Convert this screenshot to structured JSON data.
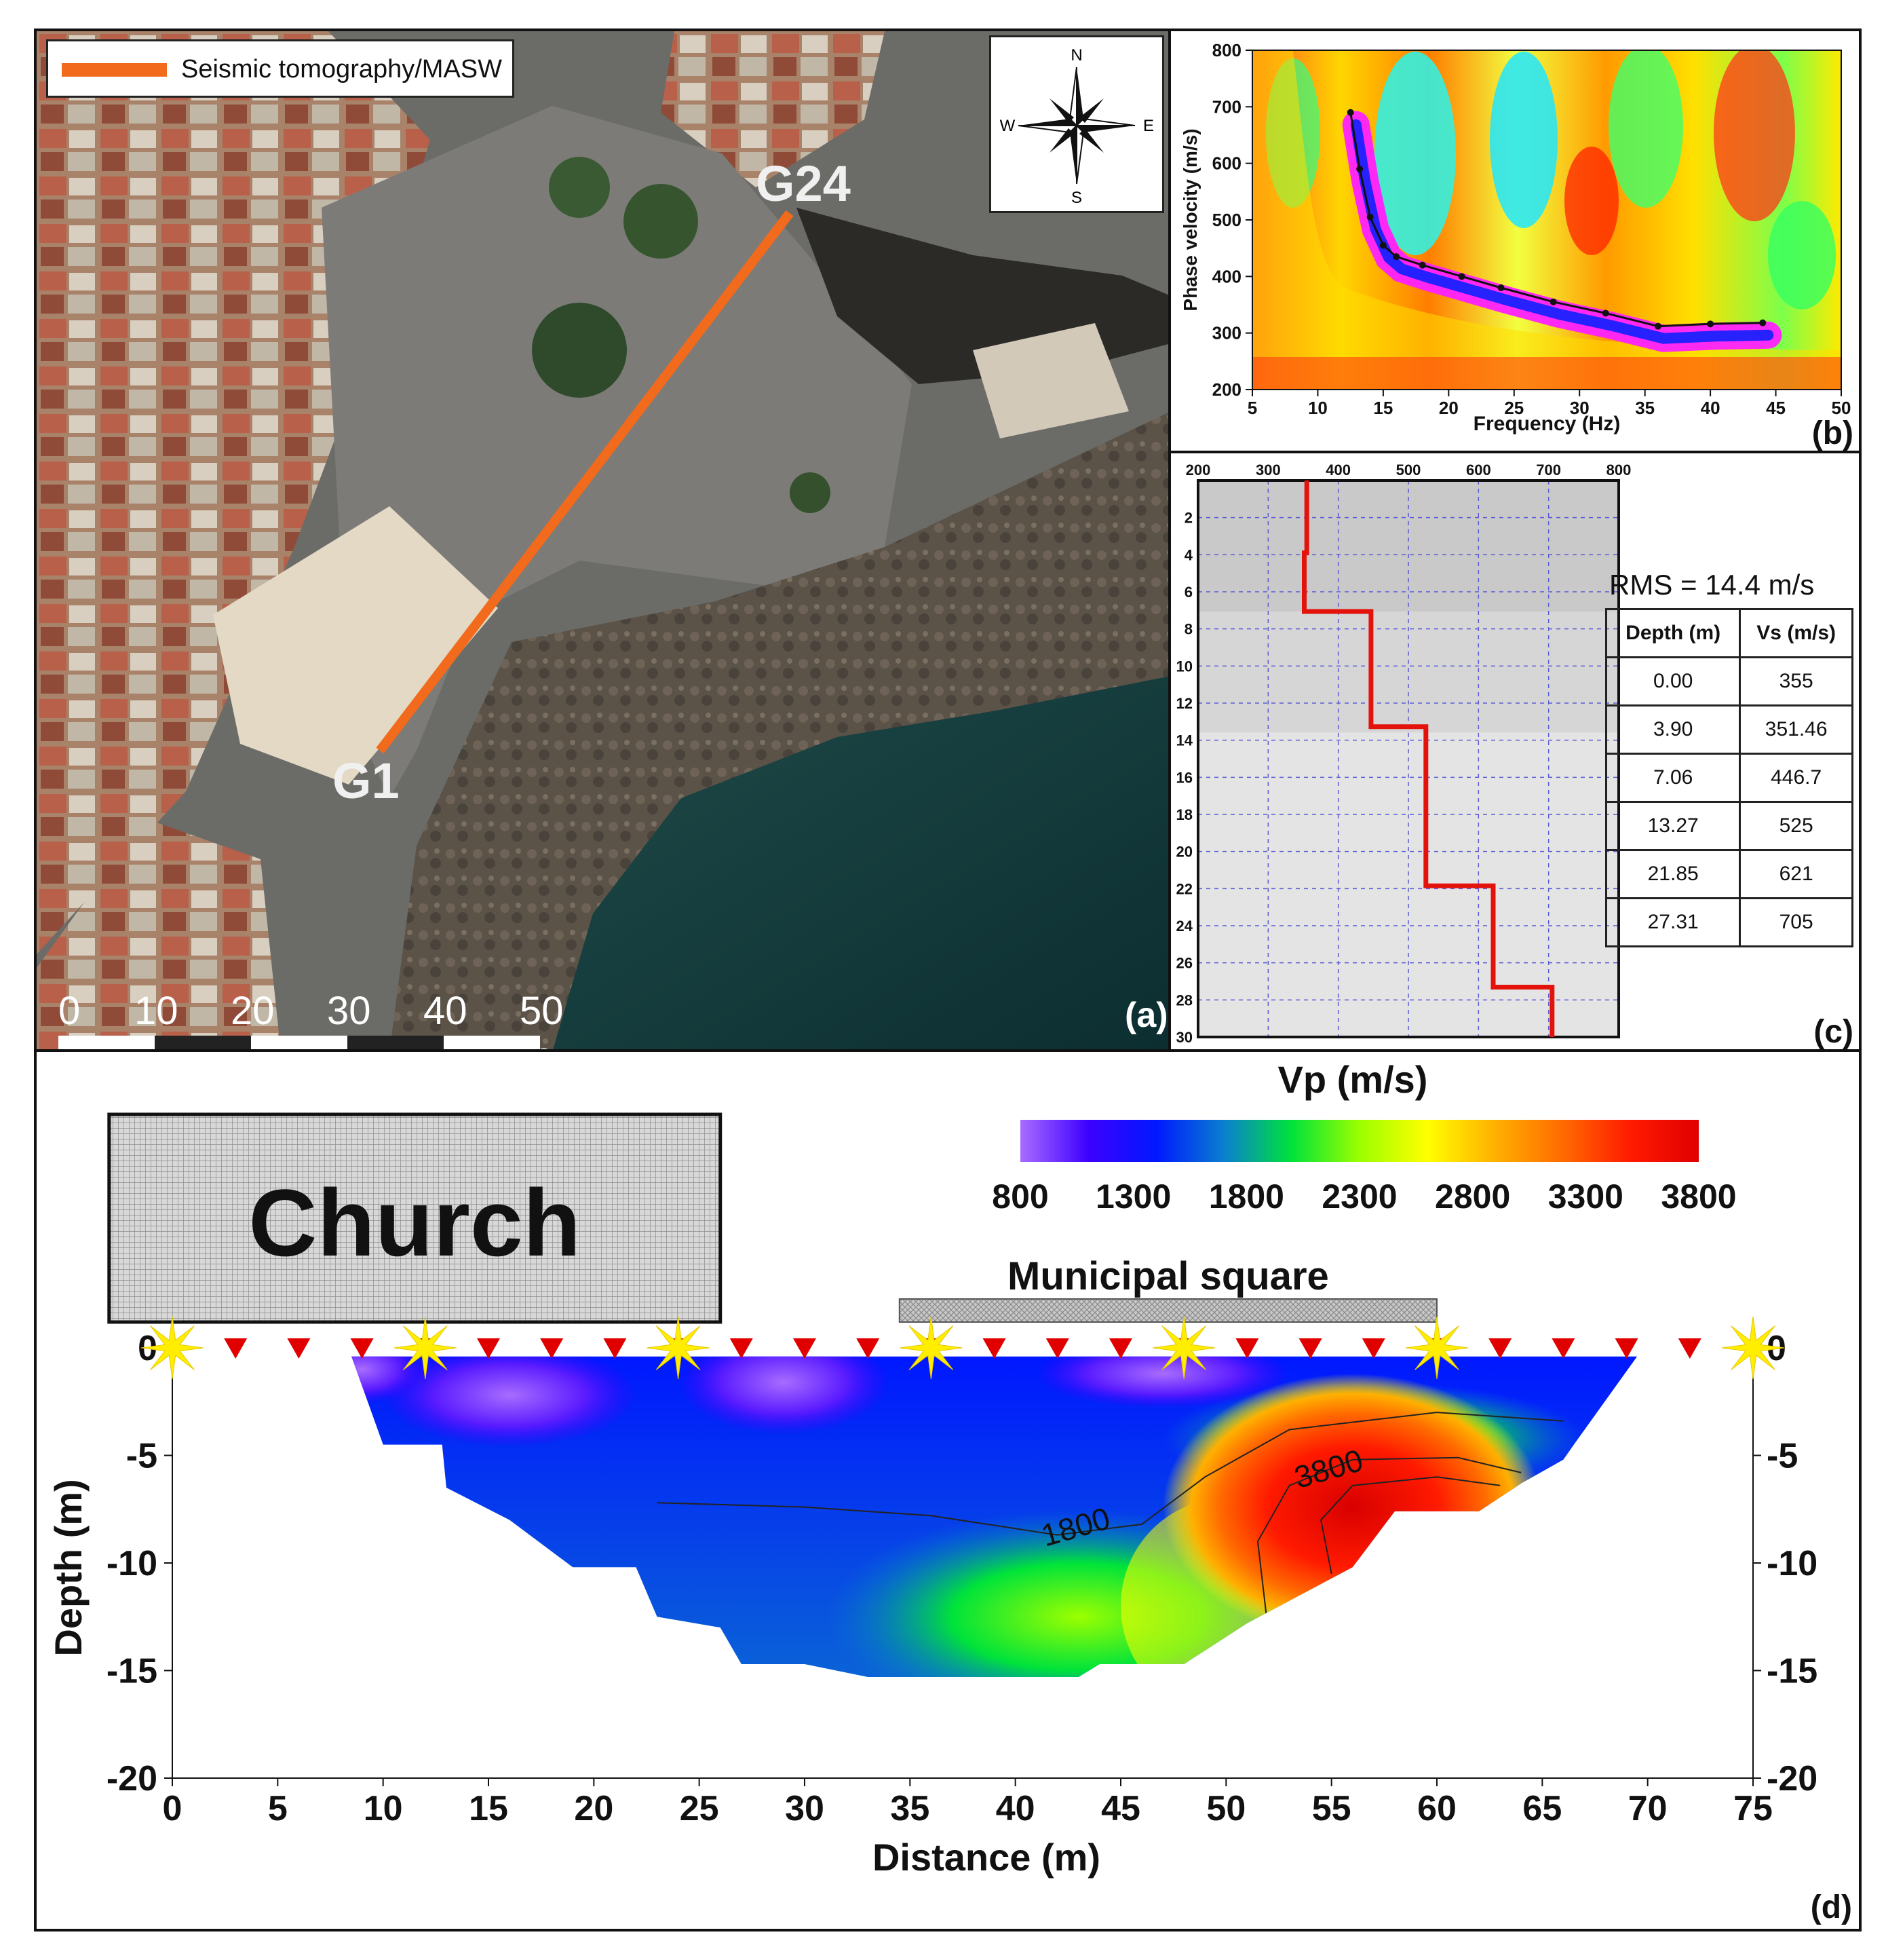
{
  "panel_labels": {
    "a": "(a)",
    "b": "(b)",
    "c": "(c)",
    "d": "(d)"
  },
  "map": {
    "legend_label": "Seismic tomography/MASW",
    "line_color": "#f26a1b",
    "endpoint_start": "G1",
    "endpoint_end": "G24",
    "compass": {
      "n": "N",
      "s": "S",
      "e": "E",
      "w": "W"
    },
    "scale_labels": [
      "0",
      "10",
      "20",
      "30",
      "40",
      "50 m"
    ]
  },
  "chart_data": [
    {
      "type": "heatmap",
      "panel": "b",
      "xlabel": "Frequency (Hz)",
      "ylabel": "Phase velocity (m/s)",
      "xlim": [
        5,
        50
      ],
      "ylim": [
        200,
        800
      ],
      "xticks": [
        5,
        10,
        15,
        20,
        25,
        30,
        35,
        40,
        45,
        50
      ],
      "yticks": [
        200,
        300,
        400,
        500,
        600,
        700,
        800
      ],
      "dispersion_curve": {
        "x": [
          12.5,
          13.2,
          14,
          15,
          16,
          18,
          21,
          24,
          28,
          32,
          36,
          40,
          44
        ],
        "y": [
          690,
          590,
          505,
          455,
          435,
          420,
          400,
          380,
          355,
          335,
          312,
          316,
          318
        ]
      }
    },
    {
      "type": "line",
      "panel": "c",
      "xlim": [
        200,
        800
      ],
      "ylim": [
        0,
        30
      ],
      "xticks": [
        200,
        300,
        400,
        500,
        600,
        700,
        800
      ],
      "yticks": [
        2,
        4,
        6,
        8,
        10,
        12,
        14,
        16,
        18,
        20,
        22,
        24,
        26,
        28,
        30
      ],
      "rms_text": "RMS = 14.4 m/s",
      "table": {
        "headers": [
          "Depth (m)",
          "Vs (m/s)"
        ],
        "rows": [
          [
            "0.00",
            "355"
          ],
          [
            "3.90",
            "351.46"
          ],
          [
            "7.06",
            "446.7"
          ],
          [
            "13.27",
            "525"
          ],
          [
            "21.85",
            "621"
          ],
          [
            "27.31",
            "705"
          ]
        ]
      },
      "vs_profile": {
        "depth_top": [
          0,
          3.9,
          7.06,
          13.27,
          21.85,
          27.31
        ],
        "vs": [
          355,
          351.46,
          446.7,
          525,
          621,
          705
        ]
      },
      "shaded_layers": [
        {
          "depth_top": 0,
          "depth_bottom": 7.06,
          "color": "#c9c9c9"
        },
        {
          "depth_top": 7.06,
          "depth_bottom": 13.6,
          "color": "#d6d6d6"
        },
        {
          "depth_top": 13.6,
          "depth_bottom": 30,
          "color": "#e4e4e4"
        }
      ]
    },
    {
      "type": "heatmap",
      "panel": "d",
      "xlabel": "Distance (m)",
      "ylabel": "Depth (m)",
      "xlim": [
        0,
        75
      ],
      "ylim": [
        -20,
        0
      ],
      "xticks": [
        0,
        5,
        10,
        15,
        20,
        25,
        30,
        35,
        40,
        45,
        50,
        55,
        60,
        65,
        70,
        75
      ],
      "yticks": [
        0,
        -5,
        -10,
        -15,
        -20
      ],
      "colorbar": {
        "title": "Vp (m/s)",
        "ticks": [
          800,
          1300,
          1800,
          2300,
          2800,
          3300,
          3800
        ],
        "colors": [
          "#a86cff",
          "#3d00ff",
          "#0018ff",
          "#0a7fd0",
          "#00e33a",
          "#9cff00",
          "#ffff00",
          "#ffb000",
          "#ff6a00",
          "#ff1a00",
          "#e00000"
        ]
      },
      "contour_labels": [
        {
          "x": 43,
          "y": -8.8,
          "text": "1800"
        },
        {
          "x": 55,
          "y": -6.1,
          "text": "3800"
        }
      ],
      "geophones_x": [
        3,
        6,
        9,
        12,
        15,
        18,
        21,
        24,
        27,
        30,
        33,
        36,
        39,
        42,
        45,
        48,
        51,
        54,
        57,
        60,
        63,
        66,
        69,
        72
      ],
      "shots_x": [
        0,
        12,
        24,
        36,
        48,
        60,
        75
      ],
      "church_label": "Church",
      "church_extent": [
        -3,
        26
      ],
      "square_label": "Municipal square",
      "square_extent": [
        34.5,
        60
      ]
    }
  ]
}
